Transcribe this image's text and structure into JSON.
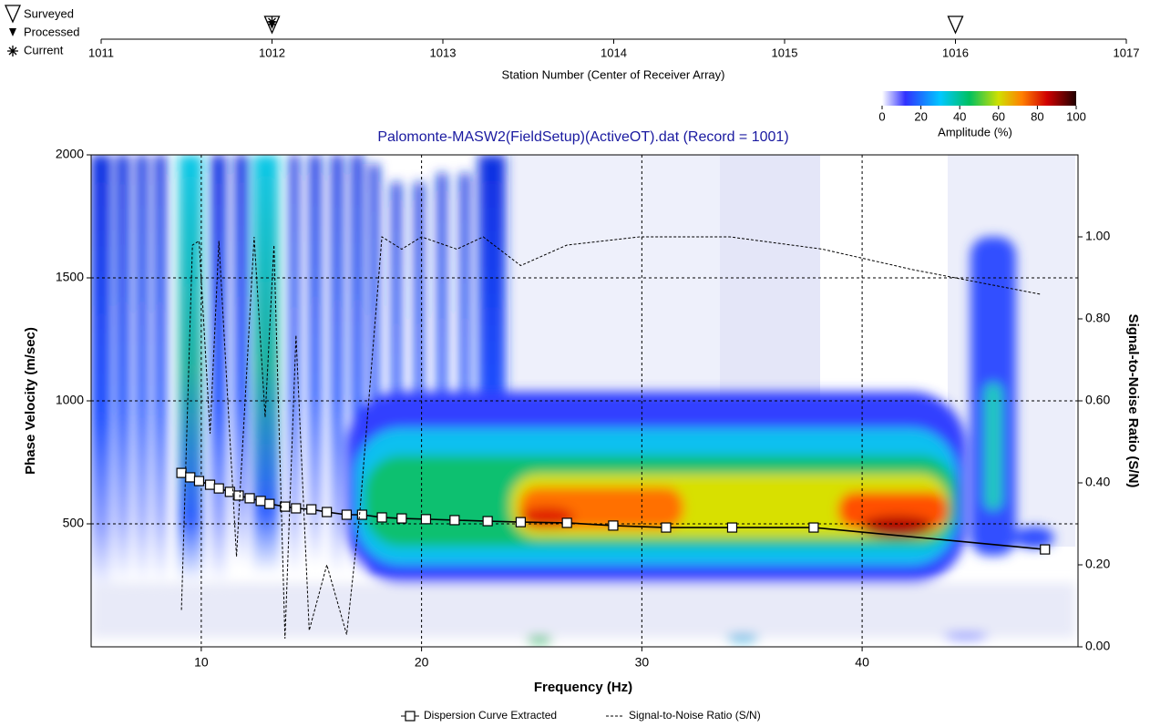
{
  "chart_data": [
    {
      "type": "markers",
      "xlabel": "Station Number (Center of Receiver Array)",
      "xlim": [
        1011,
        1017
      ],
      "xticks": [
        1011,
        1012,
        1013,
        1014,
        1015,
        1016,
        1017
      ],
      "series": [
        {
          "name": "Surveyed",
          "x": [
            1012,
            1016
          ],
          "marker": "triangle-open",
          "color": "#000000"
        },
        {
          "name": "Processed",
          "x": [
            1012
          ],
          "marker": "triangle-filled",
          "color": "#000000"
        },
        {
          "name": "Current",
          "x": [
            1012
          ],
          "marker": "asterisk",
          "color": "#000000"
        }
      ]
    },
    {
      "type": "line",
      "title": "Palomonte-MASW2(FieldSetup)(ActiveOT).dat (Record = 1001)",
      "xlabel": "Frequency (Hz)",
      "ylabel": "Phase Velocity (m/sec)",
      "y2label": "Signal-to-Noise Ratio (S/N)",
      "xlim": [
        5,
        49.8
      ],
      "xticks": [
        10,
        20,
        30,
        40
      ],
      "ylim": [
        0,
        2000
      ],
      "yticks": [
        500,
        1000,
        1500,
        2000
      ],
      "y2lim": [
        0,
        1.2
      ],
      "y2ticks": [
        {
          "value": 0,
          "label": "0.00"
        },
        {
          "value": 0.2,
          "label": "0.20"
        },
        {
          "value": 0.4,
          "label": "0.40"
        },
        {
          "value": 0.6,
          "label": "0.60"
        },
        {
          "value": 0.8,
          "label": "0.80"
        },
        {
          "value": 1,
          "label": "1.00"
        }
      ],
      "grid": true,
      "colorbar": {
        "label": "Amplitude (%)",
        "xlim": [
          0,
          100
        ],
        "xticks": [
          0,
          20,
          40,
          60,
          80,
          100
        ]
      },
      "series": [
        {
          "name": "Dispersion Curve Extracted",
          "color": "#000000",
          "marker": "square",
          "x": [
            9.1,
            9.5,
            9.9,
            10.4,
            10.8,
            11.3,
            11.7,
            12.2,
            12.7,
            13.1,
            13.8,
            14.3,
            15.0,
            15.7,
            16.6,
            17.3,
            18.2,
            19.1,
            20.2,
            21.5,
            23.0,
            24.5,
            26.6,
            28.7,
            31.1,
            34.1,
            37.8,
            48.3
          ],
          "values": [
            707,
            689,
            674,
            659,
            644,
            630,
            615,
            604,
            593,
            581,
            570,
            563,
            559,
            548,
            537,
            537,
            526,
            522,
            519,
            515,
            511,
            507,
            504,
            493,
            485,
            485,
            485,
            396
          ]
        },
        {
          "name": "Signal-to-Noise Ratio (S/N)",
          "color": "#000000",
          "dash": true,
          "axis": "y2",
          "x": [
            9.1,
            9.6,
            9.9,
            10.4,
            10.8,
            11.6,
            12.4,
            12.9,
            13.3,
            13.8,
            14.3,
            14.9,
            15.7,
            16.6,
            17.2,
            18.2,
            19.1,
            20.0,
            21.6,
            22.8,
            24.5,
            26.6,
            29.9,
            34.0,
            38.2,
            42.3,
            48.1
          ],
          "values": [
            0.09,
            0.98,
            0.99,
            0.52,
            0.99,
            0.22,
            1.0,
            0.56,
            0.98,
            0.02,
            0.76,
            0.04,
            0.2,
            0.03,
            0.33,
            1.0,
            0.97,
            1.0,
            0.97,
            1.0,
            0.93,
            0.98,
            1.0,
            1.0,
            0.97,
            0.92,
            0.86
          ]
        }
      ]
    }
  ]
}
